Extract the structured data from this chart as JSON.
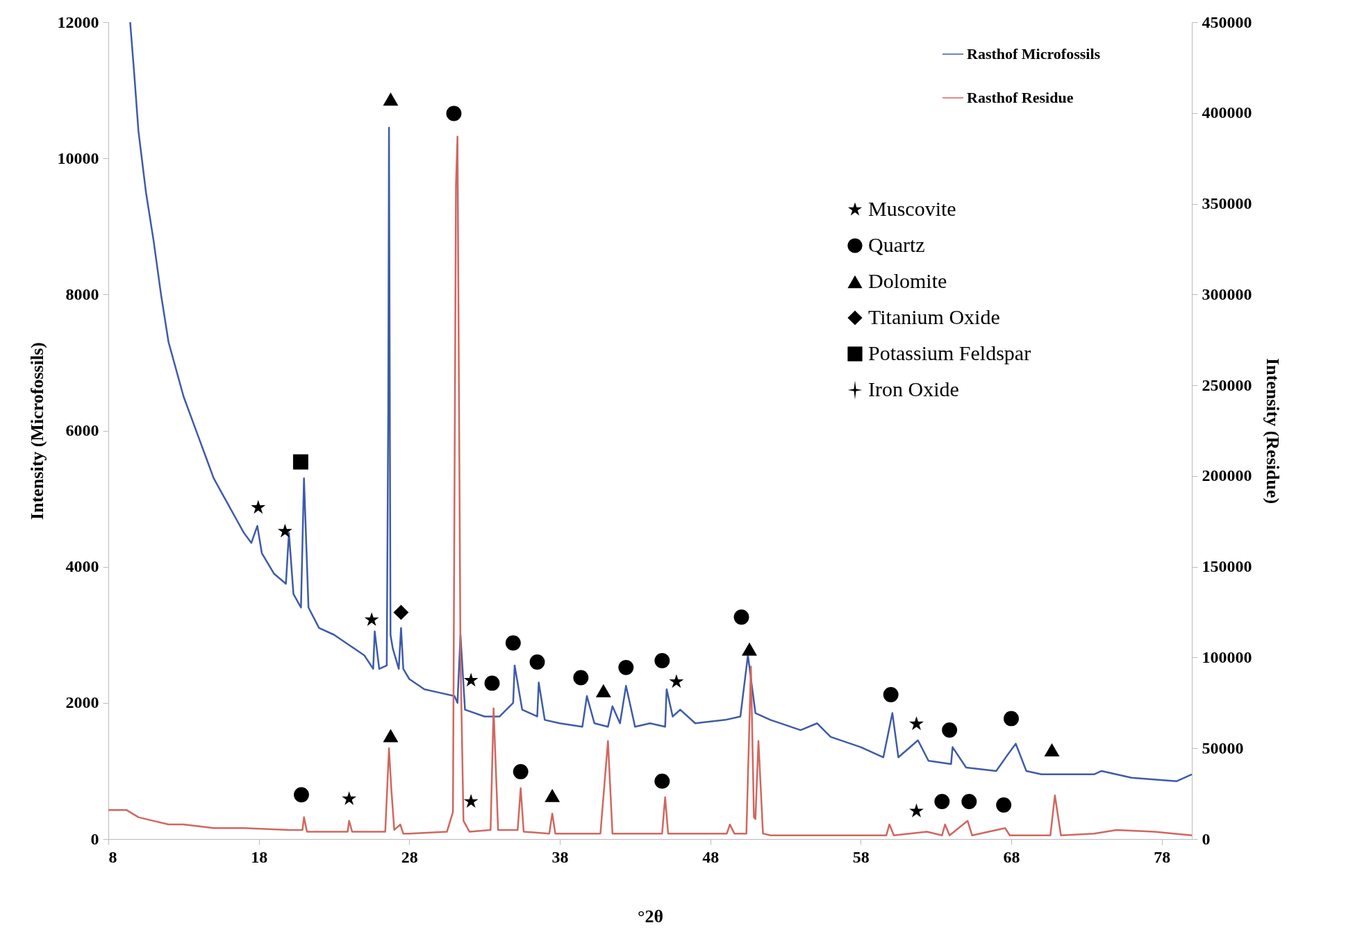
{
  "chart_data": {
    "type": "line",
    "xlabel": "°2θ",
    "ylabel": "Intensity (Microfossils)",
    "y2label": "Intensity (Residue)",
    "xlim": [
      8,
      80
    ],
    "xticks": [
      8,
      18,
      28,
      38,
      48,
      58,
      68,
      78
    ],
    "ylim": [
      0,
      12000
    ],
    "yticks": [
      0,
      2000,
      4000,
      6000,
      8000,
      10000,
      12000
    ],
    "y2lim": [
      0,
      450000
    ],
    "y2ticks": [
      0,
      50000,
      100000,
      150000,
      200000,
      250000,
      300000,
      350000,
      400000,
      450000
    ],
    "legend": "top right",
    "series": [
      {
        "name": "Rasthof Microfossils",
        "color": "#3e5ba9",
        "x": [
          9.45,
          9.7,
          10,
          10.5,
          11,
          11.5,
          12,
          12.5,
          13,
          13.5,
          14,
          14.5,
          15,
          15.5,
          16,
          16.5,
          17,
          17.5,
          17.9,
          18.2,
          19,
          19.8,
          20,
          20.3,
          20.8,
          21.0,
          21.3,
          22,
          23,
          24,
          25,
          25.6,
          25.7,
          26,
          26.5,
          26.6,
          26.65,
          26.75,
          26.9,
          27.3,
          27.45,
          27.6,
          28,
          29,
          30,
          31,
          31.2,
          31.4,
          31.7,
          33,
          34,
          34.9,
          35,
          35.5,
          36.5,
          36.6,
          37,
          38,
          39.5,
          39.8,
          40.3,
          41.2,
          41.5,
          42,
          42.4,
          43,
          44,
          45,
          45.1,
          45.5,
          46,
          47,
          49,
          50,
          50.5,
          51,
          52,
          54,
          55.1,
          56,
          58,
          59.5,
          60.1,
          60.5,
          61.8,
          62.5,
          64,
          64.1,
          65,
          67,
          67.8,
          68.3,
          69,
          70,
          72,
          73.5,
          74,
          76,
          79,
          80
        ],
        "values": [
          12000,
          11300,
          10400,
          9500,
          8800,
          8000,
          7300,
          6900,
          6500,
          6200,
          5900,
          5600,
          5300,
          5100,
          4900,
          4700,
          4500,
          4350,
          4600,
          4200,
          3900,
          3750,
          4500,
          3600,
          3400,
          5300,
          3400,
          3100,
          3000,
          2850,
          2700,
          2500,
          3050,
          2500,
          2550,
          6300,
          10450,
          3000,
          2800,
          2500,
          3100,
          2500,
          2350,
          2200,
          2150,
          2100,
          2000,
          3000,
          1900,
          1800,
          1800,
          2000,
          2550,
          1900,
          1800,
          2300,
          1750,
          1700,
          1650,
          2100,
          1700,
          1650,
          1950,
          1700,
          2250,
          1650,
          1700,
          1650,
          2200,
          1800,
          1900,
          1700,
          1750,
          1800,
          2700,
          1850,
          1750,
          1600,
          1700,
          1500,
          1350,
          1200,
          1850,
          1200,
          1450,
          1150,
          1100,
          1350,
          1050,
          1000,
          1250,
          1400,
          1000,
          950,
          950,
          950,
          1000,
          900,
          850,
          950
        ]
      },
      {
        "name": "Rasthof Residue",
        "color": "#d0675f",
        "axis": "y2",
        "x": [
          8,
          9.2,
          10,
          11,
          12,
          13,
          15,
          17,
          20,
          20.9,
          21.0,
          21.2,
          23.9,
          24.0,
          24.2,
          26.4,
          26.65,
          26.8,
          27.0,
          27.4,
          27.6,
          28,
          30.5,
          30.9,
          31.1,
          31.2,
          31.4,
          31.6,
          32,
          33.4,
          33.6,
          33.9,
          35.2,
          35.4,
          35.6,
          37.3,
          37.5,
          37.7,
          40.7,
          41.2,
          41.5,
          44.8,
          45.0,
          45.2,
          49.1,
          49.3,
          49.6,
          50.4,
          50.7,
          50.9,
          51.0,
          51.2,
          51.5,
          52,
          59.7,
          59.9,
          60.2,
          62.4,
          63.4,
          63.6,
          63.9,
          65.1,
          65.4,
          67.6,
          67.9,
          70.6,
          70.9,
          71.3,
          73.5,
          75,
          77.5,
          80
        ],
        "values": [
          16000,
          16000,
          12000,
          10000,
          8000,
          8000,
          6000,
          6000,
          5000,
          5000,
          12000,
          4000,
          4000,
          10000,
          4000,
          4000,
          50000,
          28000,
          5000,
          8000,
          3000,
          3000,
          4000,
          15000,
          360000,
          387000,
          100000,
          10000,
          4000,
          5000,
          72000,
          5000,
          5000,
          28000,
          4000,
          3000,
          14000,
          3000,
          3000,
          54000,
          3000,
          3000,
          23000,
          3000,
          3000,
          8000,
          3000,
          3000,
          95000,
          12000,
          11000,
          54000,
          3000,
          2000,
          2000,
          8000,
          2000,
          4000,
          2000,
          8000,
          2000,
          10000,
          2000,
          6000,
          2000,
          2000,
          24000,
          2000,
          3000,
          5000,
          4000,
          2000
        ]
      },
      {
        "name": "Muscovite",
        "type": "scatter",
        "marker": "star",
        "color": "#000000",
        "x": [
          17.96,
          19.74,
          25.5,
          32.1,
          45.75,
          61.7,
          24.0,
          32.1,
          61.7
        ],
        "values": [
          4870,
          4520,
          3220,
          2330,
          2310,
          1690,
          590,
          550,
          410
        ]
      },
      {
        "name": "Quartz",
        "type": "scatter",
        "marker": "circle",
        "color": "#000000",
        "x": [
          30.96,
          20.83,
          33.5,
          34.9,
          36.5,
          35.4,
          39.4,
          42.4,
          44.8,
          44.8,
          50.07,
          60.0,
          63.9,
          68.0,
          63.4,
          65.2,
          67.5
        ],
        "values": [
          10660,
          650,
          2290,
          2880,
          2600,
          990,
          2370,
          2520,
          2620,
          850,
          3260,
          2120,
          1600,
          1770,
          550,
          550,
          500
        ]
      },
      {
        "name": "Dolomite",
        "type": "scatter",
        "marker": "triangle",
        "color": "#000000",
        "x": [
          26.76,
          26.76,
          37.5,
          40.9,
          50.6,
          70.7
        ],
        "values": [
          10870,
          1520,
          640,
          2180,
          2790,
          1310
        ]
      },
      {
        "name": "Titanium Oxide",
        "type": "scatter",
        "marker": "diamond",
        "color": "#000000",
        "x": [
          27.45
        ],
        "values": [
          3330
        ]
      },
      {
        "name": "Potassium Feldspar",
        "type": "scatter",
        "marker": "square",
        "color": "#000000",
        "x": [
          20.78
        ],
        "values": [
          5540
        ]
      },
      {
        "name": "Iron Oxide",
        "type": "scatter",
        "marker": "cross",
        "color": "#000000"
      }
    ]
  }
}
